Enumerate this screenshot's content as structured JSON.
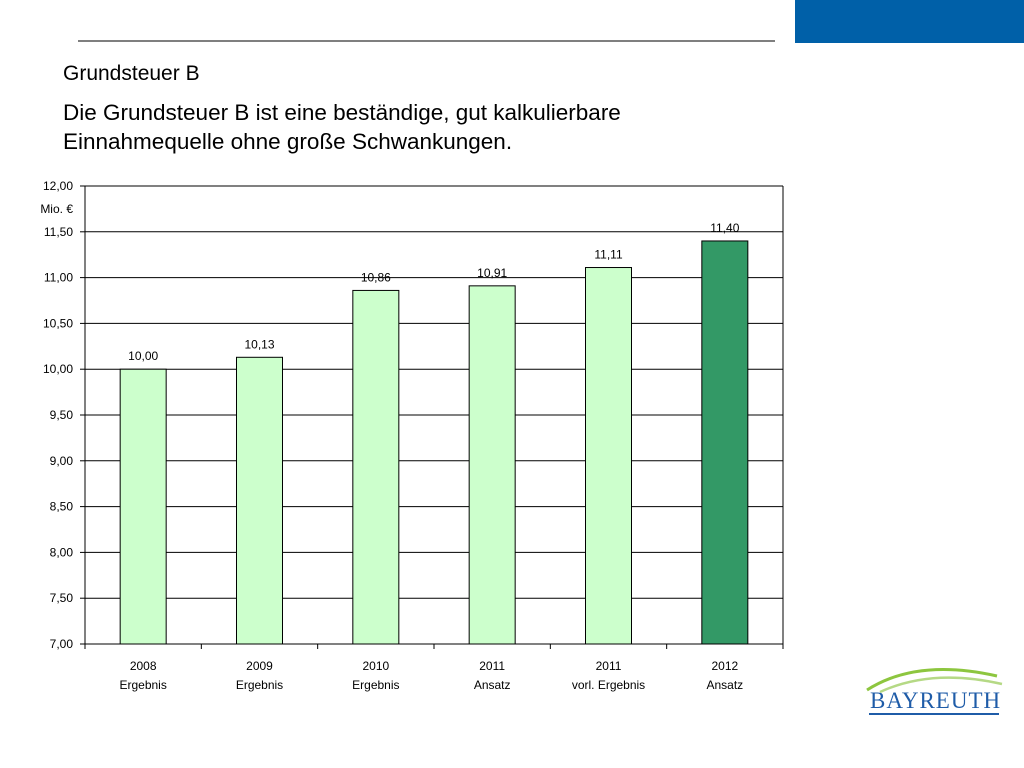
{
  "slide": {
    "title": "Grundsteuer B",
    "subtitle": "Die Grundsteuer B ist eine beständige, gut kalkulierbare Einnahmequelle ohne große Schwankungen."
  },
  "logo": {
    "text": "BAYREUTH"
  },
  "colors": {
    "brand_blue": "#0060a8",
    "bar_light": "#ccffcc",
    "bar_highlight": "#339966",
    "logo_green": "#8dc63f"
  },
  "chart_data": {
    "type": "bar",
    "ylabel": "Mio. €",
    "ylim": [
      7.0,
      12.0
    ],
    "yticks": [
      "7,00",
      "7,50",
      "8,00",
      "8,50",
      "9,00",
      "9,50",
      "10,00",
      "10,50",
      "11,00",
      "11,50",
      "12,00"
    ],
    "ytick_values": [
      7.0,
      7.5,
      8.0,
      8.5,
      9.0,
      9.5,
      10.0,
      10.5,
      11.0,
      11.5,
      12.0
    ],
    "grid": true,
    "categories": [
      [
        "2008",
        "Ergebnis"
      ],
      [
        "2009",
        "Ergebnis"
      ],
      [
        "2010",
        "Ergebnis"
      ],
      [
        "2011",
        "Ansatz"
      ],
      [
        "2011",
        "vorl. Ergebnis"
      ],
      [
        "2012",
        "Ansatz"
      ]
    ],
    "values": [
      10.0,
      10.13,
      10.86,
      10.91,
      11.11,
      11.4
    ],
    "data_labels": [
      "10,00",
      "10,13",
      "10,86",
      "10,91",
      "11,11",
      "11,40"
    ],
    "highlight_index": 5
  }
}
